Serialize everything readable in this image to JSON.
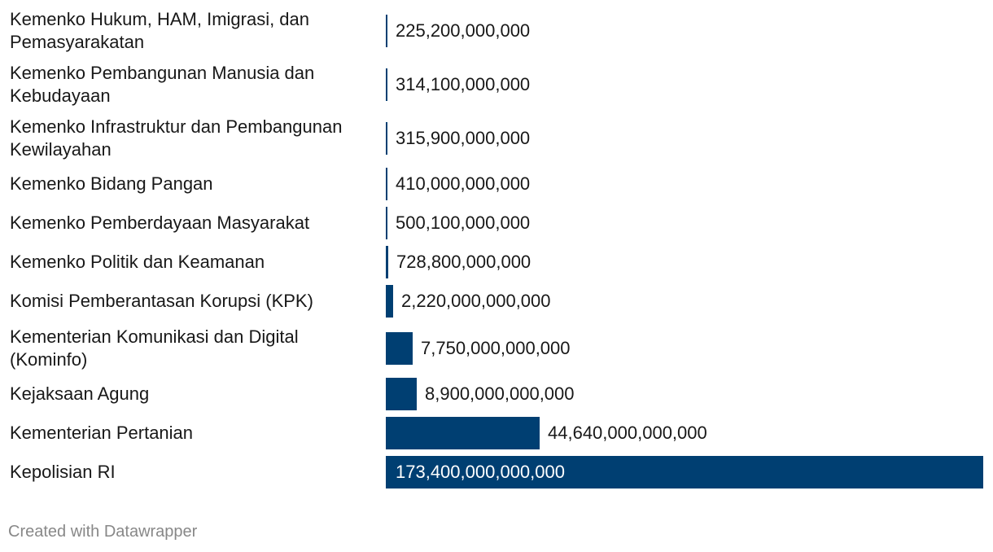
{
  "chart_data": {
    "type": "bar",
    "orientation": "horizontal",
    "title": "",
    "xlabel": "",
    "ylabel": "",
    "categories": [
      "Kemenko Hukum, HAM, Imigrasi, dan Pemasyarakatan",
      "Kemenko Pembangunan Manusia dan Kebudayaan",
      "Kemenko Infrastruktur dan Pembangunan Kewilayahan",
      "Kemenko Bidang Pangan",
      "Kemenko Pemberdayaan Masyarakat",
      "Kemenko Politik dan Keamanan",
      "Komisi Pemberantasan Korupsi (KPK)",
      "Kementerian Komunikasi dan Digital (Kominfo)",
      "Kejaksaan Agung",
      "Kementerian Pertanian",
      "Kepolisian RI"
    ],
    "values": [
      225200000000,
      314100000000,
      315900000000,
      410000000000,
      500100000000,
      728800000000,
      2220000000000,
      7750000000000,
      8900000000000,
      44640000000000,
      173400000000000
    ],
    "value_labels": [
      "225,200,000,000",
      "314,100,000,000",
      "315,900,000,000",
      "410,000,000,000",
      "500,100,000,000",
      "728,800,000,000",
      "2,220,000,000,000",
      "7,750,000,000,000",
      "8,900,000,000,000",
      "44,640,000,000,000",
      "173,400,000,000,000"
    ],
    "xlim": [
      0,
      173400000000000
    ],
    "grid": false,
    "legend": "none",
    "bar_color": "#003f72"
  },
  "footer": {
    "credit": "Created with Datawrapper"
  }
}
